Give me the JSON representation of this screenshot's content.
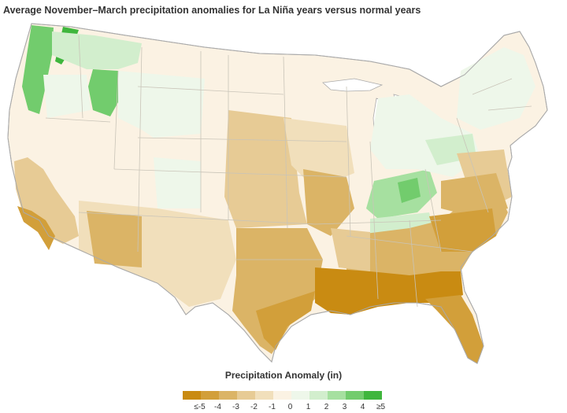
{
  "title": "Average November–March precipitation anomalies for La Niña years versus normal years",
  "legend": {
    "title": "Precipitation Anomaly (in)",
    "labels": [
      "≤-5",
      "-4",
      "-3",
      "-2",
      "-1",
      "0",
      "1",
      "2",
      "3",
      "4",
      "≥5"
    ],
    "colors": [
      "#c98b12",
      "#d29f3a",
      "#dbb466",
      "#e7cb95",
      "#f1dfbb",
      "#fbf2e3",
      "#eef7ea",
      "#d2eecd",
      "#a6e0a0",
      "#72cc6d",
      "#3fb63d"
    ]
  },
  "colors": {
    "state_border": "#c9c4b8",
    "coast": "#aaaaaa"
  }
}
